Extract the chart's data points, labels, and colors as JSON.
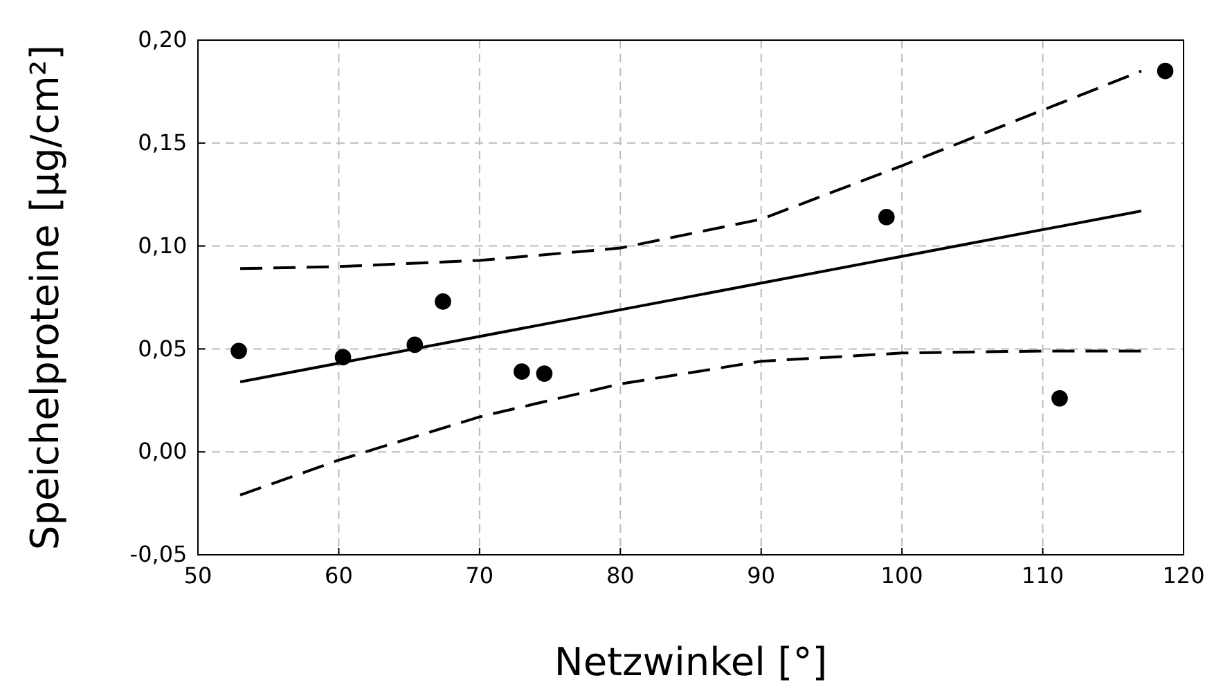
{
  "chart_data": {
    "type": "scatter",
    "xlabel": "Netzwinkel [°]",
    "ylabel": "Speichelproteine [µg/cm²]",
    "xlim": [
      50,
      120
    ],
    "xticks": [
      50,
      60,
      70,
      80,
      90,
      100,
      110,
      120
    ],
    "ylim": [
      -0.05,
      0.2
    ],
    "yticks": [
      {
        "value": -0.05,
        "label": "-0,05"
      },
      {
        "value": 0,
        "label": "0,00"
      },
      {
        "value": 0.05,
        "label": "0,05"
      },
      {
        "value": 0.1,
        "label": "0,10"
      },
      {
        "value": 0.15,
        "label": "0,15"
      },
      {
        "value": 0.2,
        "label": "0,20"
      }
    ],
    "grid": true,
    "series": [
      {
        "color": "#000000",
        "marker": "circle",
        "x": [
          52.9,
          60.3,
          65.4,
          67.4,
          73.0,
          74.6,
          98.9,
          111.2,
          118.7
        ],
        "values": [
          0.049,
          0.046,
          0.052,
          0.073,
          0.039,
          0.038,
          0.114,
          0.026,
          0.185
        ]
      },
      {
        "type": "line",
        "color": "#000000",
        "line_style": "solid",
        "marker": "none",
        "x": [
          53,
          117
        ],
        "values": [
          0.034,
          0.117
        ]
      },
      {
        "type": "line",
        "color": "#000000",
        "line_style": "dashed",
        "marker": "none",
        "x": [
          53,
          60,
          70,
          80,
          90,
          100,
          110,
          117
        ],
        "values": [
          0.089,
          0.09,
          0.093,
          0.099,
          0.113,
          0.139,
          0.166,
          0.185
        ]
      },
      {
        "type": "line",
        "color": "#000000",
        "line_style": "dashed",
        "marker": "none",
        "x": [
          53,
          60,
          70,
          80,
          90,
          100,
          110,
          117
        ],
        "values": [
          -0.021,
          -0.004,
          0.017,
          0.033,
          0.044,
          0.048,
          0.049,
          0.049
        ]
      }
    ]
  }
}
